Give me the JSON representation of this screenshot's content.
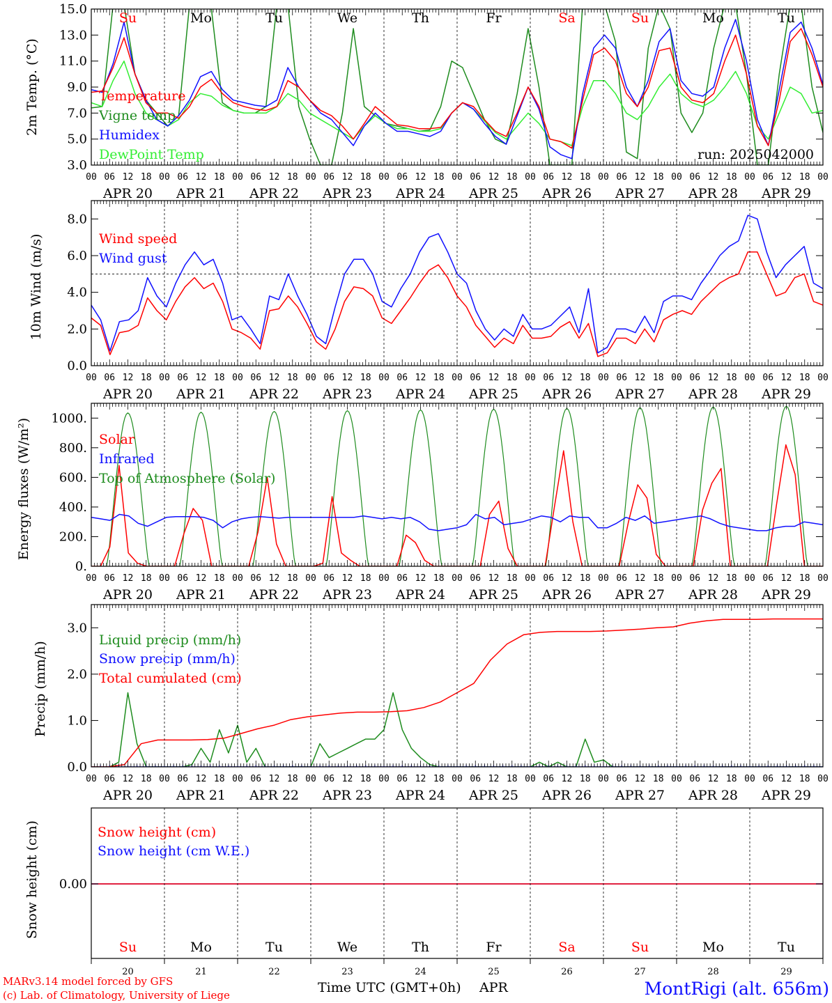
{
  "colors": {
    "red": "#ff0000",
    "green": "#1e8c1e",
    "blue": "#1010ff",
    "lightgreen": "#33ee33",
    "black": "#000000"
  },
  "days": {
    "hour_ticks": [
      "00",
      "06",
      "12",
      "18",
      "00",
      "06",
      "12",
      "18",
      "00",
      "06",
      "12",
      "18",
      "00",
      "06",
      "12",
      "18",
      "00",
      "06",
      "12",
      "18",
      "00",
      "06",
      "12",
      "18",
      "00",
      "06",
      "12",
      "18",
      "00",
      "06",
      "12",
      "18",
      "00",
      "06",
      "12",
      "18",
      "00",
      "06",
      "12",
      "18",
      "00"
    ],
    "date_labels": [
      "APR 20",
      "APR 21",
      "APR 22",
      "APR 23",
      "APR 24",
      "APR 25",
      "APR 26",
      "APR 27",
      "APR 28",
      "APR 29"
    ],
    "weekdays": [
      "Su",
      "Mo",
      "Tu",
      "We",
      "Th",
      "Fr",
      "Sa",
      "Su",
      "Mo",
      "Tu"
    ],
    "weekday_colors": [
      "#ff0000",
      "#000000",
      "#000000",
      "#000000",
      "#000000",
      "#000000",
      "#ff0000",
      "#ff0000",
      "#000000",
      "#000000"
    ],
    "day_numbers": [
      "20",
      "21",
      "22",
      "23",
      "24",
      "25",
      "26",
      "27",
      "28",
      "29"
    ]
  },
  "footer": {
    "credit_line1": "MARv3.14 model forced by GFS",
    "credit_line2": "(c) Lab. of Climatology, University of Liege",
    "x_axis_title": "Time UTC (GMT+0h)",
    "month": "APR",
    "station": "MontRigi (alt. 656m)"
  },
  "chart_data": [
    {
      "type": "line",
      "ylabel": "2m Temp. (°C)",
      "ylim": [
        3.0,
        15.0
      ],
      "y_ticks": [
        "3.0",
        "5.0",
        "7.0",
        "9.0",
        "11.0",
        "13.0",
        "15.0"
      ],
      "run_label": "run: 2025042000",
      "x_hours_step": 3,
      "series": [
        {
          "name": "Temperature",
          "color": "#ff0000",
          "values": [
            8.6,
            8.7,
            10.5,
            12.8,
            10.0,
            7.8,
            7.0,
            7.0,
            6.6,
            7.5,
            9.0,
            9.6,
            8.5,
            7.8,
            7.5,
            7.3,
            7.2,
            7.5,
            9.5,
            9.0,
            8.0,
            7.2,
            6.8,
            6.0,
            5.0,
            6.2,
            7.5,
            6.8,
            6.1,
            6.0,
            5.8,
            5.8,
            5.9,
            7.0,
            7.8,
            7.5,
            6.5,
            5.6,
            5.2,
            7.0,
            9.0,
            7.5,
            5.0,
            4.8,
            4.3,
            8.0,
            11.5,
            12.0,
            11.0,
            8.5,
            7.5,
            9.0,
            11.8,
            12.0,
            9.0,
            8.0,
            7.8,
            8.5,
            11.0,
            13.0,
            10.0,
            6.0,
            4.5,
            8.0,
            12.5,
            13.5,
            11.5,
            9.0
          ]
        },
        {
          "name": "Vigne temp",
          "color": "#1e8c1e",
          "values": [
            7.4,
            7.5,
            15.5,
            15.5,
            10.0,
            8.0,
            7.0,
            6.0,
            6.8,
            15.5,
            15.5,
            15.0,
            7.8,
            7.2,
            7.0,
            7.0,
            7.5,
            15.5,
            15.5,
            7.5,
            5.0,
            3.0,
            3.0,
            7.0,
            13.5,
            7.5,
            6.8,
            6.2,
            6.0,
            5.8,
            5.6,
            5.7,
            7.5,
            11.0,
            10.5,
            8.5,
            6.5,
            5.0,
            4.6,
            8.5,
            13.5,
            9.0,
            3.0,
            3.0,
            3.0,
            15.5,
            15.5,
            15.5,
            12.5,
            4.0,
            3.5,
            12.0,
            15.5,
            13.5,
            7.0,
            5.5,
            7.0,
            12.0,
            15.5,
            15.5,
            10.0,
            3.0,
            3.0,
            10.0,
            15.5,
            15.5,
            9.0,
            5.5
          ]
        },
        {
          "name": "Humidex",
          "color": "#1010ff",
          "values": [
            8.8,
            8.6,
            10.8,
            14.0,
            10.0,
            8.0,
            6.5,
            6.0,
            6.8,
            8.0,
            9.8,
            10.2,
            8.8,
            8.0,
            7.8,
            7.6,
            7.5,
            8.0,
            10.5,
            9.0,
            8.0,
            7.0,
            6.5,
            5.5,
            4.5,
            6.0,
            7.0,
            6.2,
            5.6,
            5.6,
            5.4,
            5.2,
            5.6,
            7.0,
            7.8,
            7.3,
            6.2,
            5.2,
            4.6,
            6.8,
            9.0,
            7.3,
            4.4,
            3.8,
            3.5,
            8.5,
            12.0,
            13.0,
            12.0,
            9.0,
            7.5,
            9.5,
            12.5,
            13.5,
            9.5,
            8.5,
            8.3,
            9.0,
            12.0,
            14.2,
            11.0,
            6.5,
            4.5,
            8.8,
            13.2,
            14.0,
            12.0,
            9.2
          ]
        },
        {
          "name": "DewPoint Temp",
          "color": "#33ee33",
          "values": [
            7.8,
            7.5,
            9.5,
            11.0,
            8.5,
            7.0,
            6.5,
            6.0,
            6.5,
            7.8,
            8.5,
            8.3,
            7.6,
            7.2,
            7.0,
            7.0,
            7.0,
            7.5,
            8.5,
            8.0,
            7.0,
            6.5,
            6.0,
            5.5,
            5.0,
            6.0,
            6.8,
            6.2,
            5.8,
            5.8,
            5.6,
            5.6,
            5.8,
            7.0,
            7.8,
            7.3,
            6.4,
            5.5,
            5.0,
            6.0,
            7.0,
            6.2,
            5.0,
            4.8,
            4.5,
            7.5,
            9.5,
            9.5,
            8.5,
            7.0,
            6.5,
            7.5,
            9.0,
            10.0,
            8.5,
            7.8,
            7.5,
            8.0,
            9.0,
            10.2,
            8.5,
            6.0,
            5.0,
            7.0,
            9.0,
            8.5,
            7.0,
            7.2
          ]
        }
      ]
    },
    {
      "type": "line",
      "ylabel": "10m Wind (m/s)",
      "ylim": [
        0.0,
        9.0
      ],
      "y_ticks": [
        "0.0",
        "2.0",
        "4.0",
        "6.0",
        "8.0"
      ],
      "reference_line": 5.0,
      "x_hours_step": 3,
      "series": [
        {
          "name": "Wind speed",
          "color": "#ff0000",
          "values": [
            2.6,
            2.2,
            0.6,
            1.8,
            1.9,
            2.2,
            3.7,
            3.0,
            2.5,
            3.5,
            4.3,
            4.8,
            4.2,
            4.5,
            3.5,
            2.0,
            1.8,
            1.5,
            0.9,
            3.0,
            3.1,
            3.8,
            3.2,
            2.3,
            1.3,
            0.9,
            2.0,
            3.5,
            4.3,
            4.2,
            3.8,
            2.6,
            2.3,
            3.0,
            3.7,
            4.5,
            5.2,
            5.5,
            4.8,
            3.8,
            3.2,
            2.2,
            1.6,
            1.0,
            1.5,
            1.2,
            2.2,
            1.5,
            1.5,
            1.6,
            2.1,
            2.4,
            1.5,
            2.3,
            0.5,
            0.7,
            1.5,
            1.5,
            1.2,
            2.0,
            1.3,
            2.5,
            2.8,
            3.0,
            2.8,
            3.5,
            4.0,
            4.5,
            4.8,
            5.0,
            6.2,
            6.2,
            5.0,
            3.8,
            4.0,
            4.8,
            5.0,
            3.5,
            3.3
          ]
        },
        {
          "name": "Wind gust",
          "color": "#1010ff",
          "values": [
            3.3,
            2.5,
            0.8,
            2.4,
            2.5,
            3.0,
            4.8,
            3.8,
            3.2,
            4.5,
            5.5,
            6.2,
            5.5,
            5.8,
            4.5,
            2.5,
            2.7,
            2.0,
            1.2,
            3.8,
            3.6,
            5.0,
            3.8,
            2.8,
            1.6,
            1.2,
            3.2,
            5.0,
            5.8,
            5.8,
            5.0,
            3.5,
            3.2,
            4.2,
            5.0,
            6.2,
            7.0,
            7.2,
            6.2,
            5.0,
            4.5,
            3.0,
            2.0,
            1.4,
            2.0,
            1.6,
            2.8,
            2.0,
            2.0,
            2.2,
            2.7,
            3.2,
            1.8,
            4.2,
            0.7,
            1.0,
            2.0,
            2.0,
            1.8,
            2.7,
            1.8,
            3.5,
            3.8,
            3.8,
            3.6,
            4.5,
            5.2,
            6.0,
            6.5,
            6.8,
            8.2,
            8.0,
            6.2,
            4.8,
            5.5,
            6.0,
            6.5,
            4.5,
            4.2
          ]
        }
      ]
    },
    {
      "type": "line",
      "ylabel": "Energy fluxes (W/m²)",
      "ylim": [
        0,
        1100
      ],
      "y_ticks": [
        "0.",
        "200.",
        "400.",
        "600.",
        "800.",
        "1000."
      ],
      "x_hours_step": 3,
      "series": [
        {
          "name": "Solar",
          "color": "#ff0000",
          "values": [
            0,
            0,
            130,
            680,
            90,
            20,
            0,
            0,
            0,
            0,
            220,
            390,
            310,
            0,
            0,
            0,
            0,
            0,
            230,
            600,
            150,
            0,
            0,
            0,
            0,
            20,
            470,
            90,
            40,
            0,
            0,
            0,
            0,
            0,
            210,
            160,
            40,
            0,
            0,
            0,
            0,
            0,
            0,
            350,
            440,
            120,
            0,
            0,
            0,
            0,
            400,
            780,
            300,
            0,
            0,
            0,
            0,
            0,
            300,
            550,
            460,
            80,
            0,
            0,
            0,
            0,
            380,
            560,
            660,
            0,
            0,
            0,
            0,
            0,
            420,
            820,
            620,
            0,
            0,
            0
          ]
        },
        {
          "name": "Infrared",
          "color": "#1010ff",
          "values": [
            330,
            320,
            310,
            350,
            340,
            290,
            270,
            300,
            330,
            335,
            335,
            335,
            330,
            310,
            260,
            300,
            320,
            330,
            335,
            330,
            325,
            330,
            330,
            330,
            330,
            330,
            330,
            330,
            330,
            340,
            330,
            320,
            330,
            320,
            330,
            300,
            250,
            240,
            250,
            260,
            280,
            350,
            320,
            330,
            280,
            290,
            300,
            320,
            340,
            330,
            300,
            340,
            330,
            330,
            260,
            260,
            290,
            330,
            310,
            340,
            290,
            300,
            310,
            320,
            330,
            340,
            320,
            290,
            270,
            260,
            250,
            240,
            240,
            260,
            270,
            270,
            300,
            290,
            280
          ]
        },
        {
          "name": "Top of Atmosphere (Solar)",
          "color": "#1e8c1e",
          "peaks": [
            1035,
            1040,
            1045,
            1050,
            1055,
            1060,
            1065,
            1070,
            1075,
            1080
          ]
        }
      ]
    },
    {
      "type": "line",
      "ylabel": "Precip (mm/h)",
      "ylim": [
        0.0,
        3.5
      ],
      "y_ticks": [
        "0.0",
        "1.0",
        "2.0",
        "3.0"
      ],
      "x_hours_step": 3,
      "series": [
        {
          "name": "Liquid precip (mm/h)",
          "color": "#1e8c1e",
          "values": [
            0,
            0,
            0,
            0.1,
            1.6,
            0.5,
            0,
            0,
            0,
            0,
            0,
            0.05,
            0.4,
            0.1,
            0.8,
            0.3,
            0.9,
            0.1,
            0.4,
            0,
            0,
            0,
            0,
            0,
            0,
            0.5,
            0.2,
            0.3,
            0.4,
            0.5,
            0.6,
            0.6,
            0.8,
            1.6,
            0.8,
            0.4,
            0.2,
            0.05,
            0,
            0,
            0,
            0,
            0,
            0,
            0,
            0,
            0,
            0,
            0,
            0.1,
            0,
            0.1,
            0,
            0,
            0.6,
            0.1,
            0.15,
            0,
            0,
            0,
            0,
            0,
            0,
            0,
            0,
            0,
            0,
            0,
            0,
            0,
            0,
            0,
            0,
            0,
            0,
            0,
            0,
            0,
            0,
            0,
            0
          ]
        },
        {
          "name": "Snow precip (mm/h)",
          "color": "#1010ff",
          "values": [
            0,
            0,
            0,
            0,
            0,
            0,
            0,
            0,
            0,
            0
          ]
        },
        {
          "name": "Total cumulated (cm)",
          "color": "#ff0000",
          "values": [
            0,
            0,
            0.05,
            0.5,
            0.58,
            0.58,
            0.58,
            0.59,
            0.62,
            0.72,
            0.82,
            0.9,
            1.02,
            1.08,
            1.12,
            1.16,
            1.18,
            1.18,
            1.19,
            1.21,
            1.28,
            1.4,
            1.6,
            1.8,
            2.3,
            2.65,
            2.85,
            2.9,
            2.92,
            2.92,
            2.92,
            2.93,
            2.95,
            2.97,
            3.0,
            3.02,
            3.1,
            3.15,
            3.18,
            3.18,
            3.18,
            3.19,
            3.19,
            3.19,
            3.19
          ]
        }
      ]
    },
    {
      "type": "line",
      "ylabel": "Snow height (cm)",
      "y_ticks": [
        "0.00"
      ],
      "series": [
        {
          "name": "Snow height (cm)",
          "color": "#ff0000",
          "values": [
            0,
            0
          ]
        },
        {
          "name": "Snow height (cm W.E.)",
          "color": "#1010ff",
          "values": [
            0,
            0
          ]
        }
      ]
    }
  ]
}
